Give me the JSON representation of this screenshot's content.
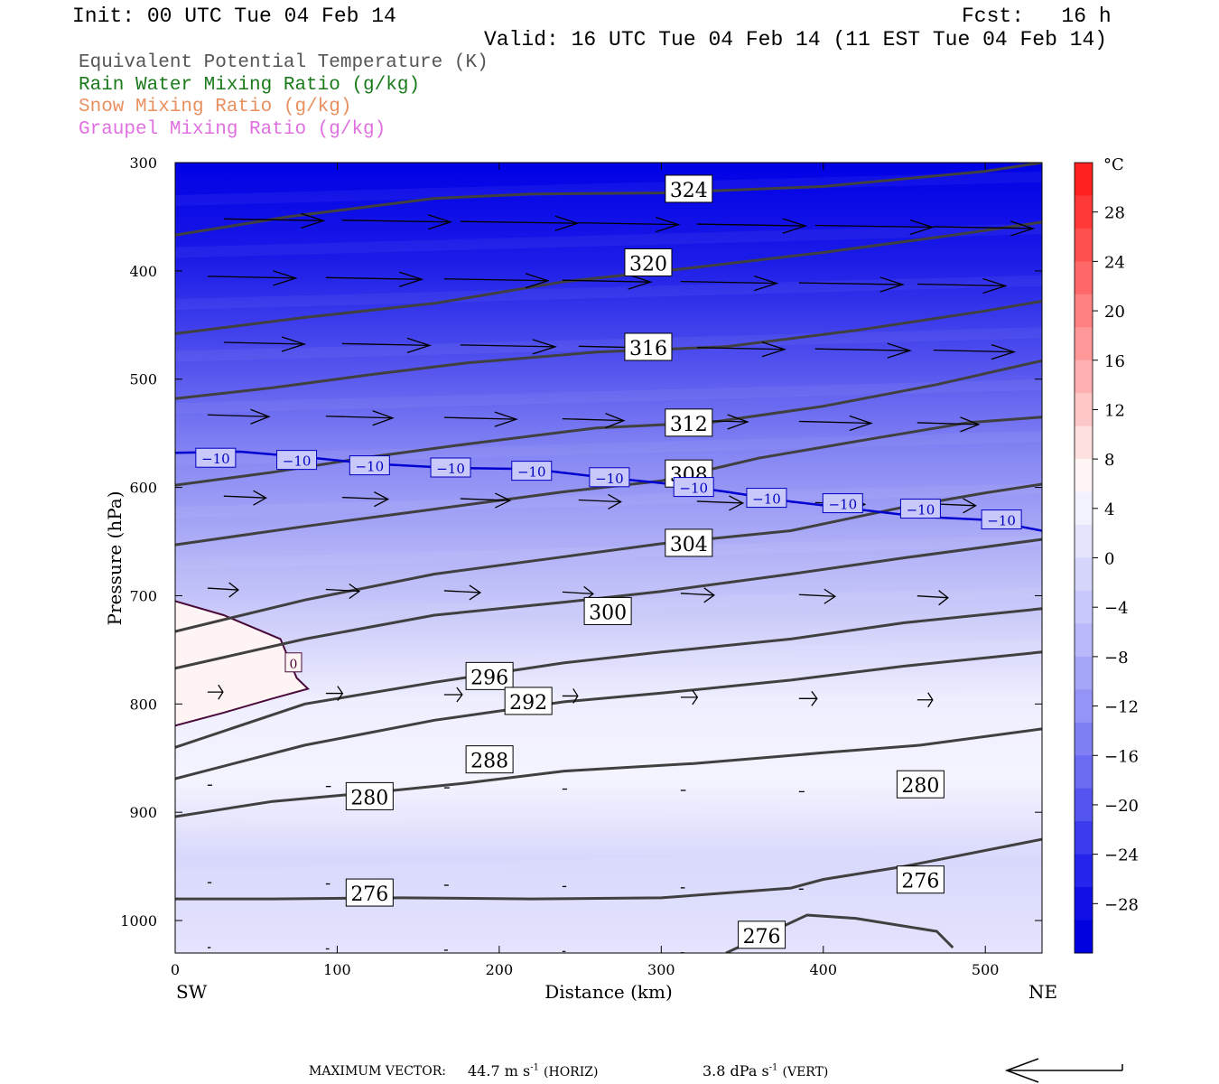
{
  "header": {
    "init": "Init: 00 UTC Tue 04 Feb 14",
    "fcst": "Fcst:   16 h",
    "valid": "Valid: 16 UTC Tue 04 Feb 14 (11 EST Tue 04 Feb 14)"
  },
  "legend": [
    {
      "label": "Equivalent Potential Temperature (K)",
      "color": "#555555"
    },
    {
      "label": "Rain Water Mixing Ratio (g/kg)",
      "color": "#1a7a1a"
    },
    {
      "label": "Snow Mixing Ratio (g/kg)",
      "color": "#e89060"
    },
    {
      "label": "Graupel Mixing Ratio (g/kg)",
      "color": "#e070e0"
    }
  ],
  "footer": {
    "max_vector_label": "MAXIMUM VECTOR:",
    "horiz": "44.7 m s",
    "horiz_unit": "(HORIZ)",
    "vert": "3.8 dPa s",
    "vert_unit": "(VERT)",
    "exponent": "-1"
  },
  "chart_data": {
    "type": "contour",
    "xlabel": "Distance (km)",
    "ylabel": "Pressure (hPa)",
    "xlim": [
      0,
      535
    ],
    "ylim": [
      300,
      1030
    ],
    "x_ticks": [
      0,
      100,
      200,
      300,
      400,
      500
    ],
    "y_ticks": [
      300,
      400,
      500,
      600,
      700,
      800,
      900,
      1000
    ],
    "x_end_labels": {
      "left": "SW",
      "right": "NE"
    },
    "colorbar": {
      "unit": "°C",
      "tick_labels": [
        "28",
        "24",
        "20",
        "16",
        "12",
        "8",
        "4",
        "0",
        "−4",
        "−8",
        "−12",
        "−16",
        "−20",
        "−24",
        "−28"
      ],
      "tick_values": [
        28,
        24,
        20,
        16,
        12,
        8,
        4,
        0,
        -4,
        -8,
        -12,
        -16,
        -20,
        -24,
        -28
      ],
      "warm_colors": [
        "#ff2020",
        "#ff3838",
        "#ff5050",
        "#ff6868",
        "#ff8080",
        "#ff9898",
        "#ffb0b0",
        "#ffc8c8",
        "#ffe0e0",
        "#fff5f5"
      ],
      "cold_colors": [
        "#f2f2ff",
        "#e4e4fe",
        "#d6d6fd",
        "#c8c8fc",
        "#b8b8fa",
        "#a6a6f8",
        "#9494f6",
        "#8080f4",
        "#6a6af2",
        "#5454f0",
        "#3c3cee",
        "#2424ec",
        "#1010e6",
        "#0000e0"
      ]
    },
    "theta_e_contours": [
      {
        "label": "324",
        "points": [
          [
            0,
            367
          ],
          [
            70,
            350
          ],
          [
            160,
            333
          ],
          [
            220,
            329
          ],
          [
            300,
            328
          ],
          [
            400,
            322
          ],
          [
            500,
            308
          ],
          [
            535,
            300
          ]
        ],
        "label_at": [
          317,
          325
        ]
      },
      {
        "label": "320",
        "points": [
          [
            0,
            458
          ],
          [
            80,
            443
          ],
          [
            160,
            430
          ],
          [
            240,
            410
          ],
          [
            320,
            397
          ],
          [
            400,
            383
          ],
          [
            480,
            367
          ],
          [
            535,
            355
          ]
        ],
        "label_at": [
          292,
          393
        ]
      },
      {
        "label": "316",
        "points": [
          [
            0,
            518
          ],
          [
            60,
            508
          ],
          [
            120,
            496
          ],
          [
            180,
            485
          ],
          [
            260,
            475
          ],
          [
            340,
            470
          ],
          [
            420,
            455
          ],
          [
            500,
            437
          ],
          [
            535,
            428
          ]
        ],
        "label_at": [
          292,
          471
        ]
      },
      {
        "label": "312",
        "points": [
          [
            0,
            598
          ],
          [
            60,
            586
          ],
          [
            120,
            572
          ],
          [
            180,
            560
          ],
          [
            260,
            545
          ],
          [
            330,
            540
          ],
          [
            400,
            525
          ],
          [
            470,
            505
          ],
          [
            535,
            483
          ]
        ],
        "label_at": [
          317,
          541
        ]
      },
      {
        "label": "308",
        "points": [
          [
            0,
            653
          ],
          [
            80,
            636
          ],
          [
            160,
            620
          ],
          [
            240,
            604
          ],
          [
            300,
            594
          ],
          [
            360,
            573
          ],
          [
            430,
            555
          ],
          [
            490,
            540
          ],
          [
            535,
            535
          ]
        ],
        "label_at": [
          317,
          588
        ]
      },
      {
        "label": "304",
        "points": [
          [
            0,
            733
          ],
          [
            80,
            704
          ],
          [
            160,
            680
          ],
          [
            240,
            664
          ],
          [
            300,
            652
          ],
          [
            380,
            640
          ],
          [
            450,
            618
          ],
          [
            500,
            605
          ],
          [
            535,
            597
          ]
        ],
        "label_at": [
          317,
          652
        ]
      },
      {
        "label": "300",
        "points": [
          [
            0,
            767
          ],
          [
            80,
            740
          ],
          [
            160,
            718
          ],
          [
            240,
            706
          ],
          [
            300,
            696
          ],
          [
            380,
            680
          ],
          [
            450,
            665
          ],
          [
            535,
            648
          ]
        ],
        "label_at": [
          267,
          715
        ]
      },
      {
        "label": "296",
        "points": [
          [
            0,
            840
          ],
          [
            80,
            800
          ],
          [
            160,
            780
          ],
          [
            240,
            762
          ],
          [
            300,
            752
          ],
          [
            380,
            740
          ],
          [
            450,
            725
          ],
          [
            535,
            712
          ]
        ],
        "label_at": [
          194,
          775
        ]
      },
      {
        "label": "292",
        "points": [
          [
            0,
            869
          ],
          [
            80,
            838
          ],
          [
            160,
            815
          ],
          [
            240,
            798
          ],
          [
            300,
            790
          ],
          [
            380,
            778
          ],
          [
            450,
            765
          ],
          [
            535,
            752
          ]
        ],
        "label_at": [
          218,
          798
        ]
      },
      {
        "label": "288",
        "points": [
          [
            0,
            904
          ],
          [
            60,
            890
          ],
          [
            120,
            882
          ],
          [
            180,
            873
          ],
          [
            240,
            862
          ],
          [
            320,
            855
          ],
          [
            400,
            845
          ],
          [
            460,
            838
          ],
          [
            535,
            823
          ]
        ],
        "label_at": [
          194,
          852
        ]
      },
      {
        "label": "280",
        "points": [
          [
            0,
            980
          ],
          [
            60,
            980
          ],
          [
            140,
            979
          ],
          [
            220,
            980
          ],
          [
            300,
            979
          ],
          [
            380,
            970
          ],
          [
            400,
            962
          ],
          [
            450,
            950
          ],
          [
            535,
            925
          ]
        ],
        "label_at": [
          120,
          886
        ]
      },
      {
        "label": "280",
        "points": [
          [
            0,
            980
          ],
          [
            60,
            980
          ]
        ],
        "label_at": [
          460,
          875
        ]
      },
      {
        "label": "276",
        "points": [
          [
            0,
            1030
          ],
          [
            60,
            1030
          ]
        ],
        "label_at": [
          120,
          975
        ]
      },
      {
        "label": "276",
        "points": [
          [
            0,
            1030
          ],
          [
            60,
            1030
          ]
        ],
        "label_at": [
          460,
          963
        ]
      },
      {
        "label": "276",
        "points": [
          [
            340,
            1030
          ],
          [
            390,
            995
          ],
          [
            420,
            998
          ],
          [
            470,
            1010
          ],
          [
            480,
            1025
          ]
        ],
        "label_at": [
          362,
          1014
        ]
      }
    ],
    "isotherm_minus10": {
      "label": "−10",
      "points": [
        [
          0,
          568
        ],
        [
          40,
          567
        ],
        [
          80,
          572
        ],
        [
          120,
          578
        ],
        [
          170,
          582
        ],
        [
          220,
          583
        ],
        [
          260,
          590
        ],
        [
          300,
          596
        ],
        [
          340,
          604
        ],
        [
          380,
          613
        ],
        [
          420,
          620
        ],
        [
          460,
          627
        ],
        [
          500,
          630
        ],
        [
          535,
          640
        ]
      ],
      "label_positions": [
        [
          25,
          573
        ],
        [
          75,
          575
        ],
        [
          120,
          580
        ],
        [
          170,
          582
        ],
        [
          220,
          585
        ],
        [
          268,
          591
        ],
        [
          320,
          600
        ],
        [
          365,
          610
        ],
        [
          412,
          615
        ],
        [
          460,
          620
        ],
        [
          510,
          630
        ]
      ]
    },
    "zero_contour": {
      "label": "0",
      "points": [
        [
          0,
          705
        ],
        [
          30,
          718
        ],
        [
          65,
          740
        ],
        [
          75,
          776
        ],
        [
          82,
          786
        ],
        [
          60,
          795
        ],
        [
          30,
          808
        ],
        [
          0,
          820
        ]
      ],
      "label_at": [
        73,
        762
      ]
    },
    "max_vector": {
      "horiz": 44.7,
      "vert": 3.8
    }
  }
}
